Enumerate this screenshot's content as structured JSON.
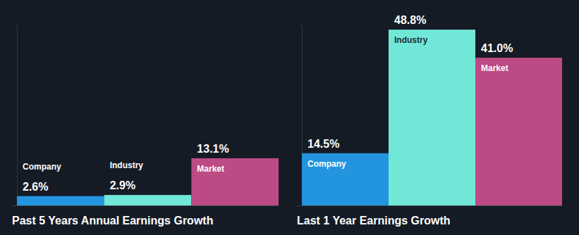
{
  "chart_data": [
    {
      "type": "bar",
      "title": "Past 5 Years Annual Earnings Growth",
      "categories": [
        "Company",
        "Industry",
        "Market"
      ],
      "values": [
        2.6,
        2.9,
        13.1
      ],
      "value_labels": [
        "2.6%",
        "2.9%",
        "13.1%"
      ],
      "colors": [
        "#2394df",
        "#71e8d7",
        "#bc4a85"
      ],
      "ylim": [
        0,
        50
      ],
      "yticks": [
        0,
        50
      ],
      "data_labels": true,
      "tick_labels": false,
      "grid": false
    },
    {
      "type": "bar",
      "title": "Last 1 Year Earnings Growth",
      "categories": [
        "Company",
        "Industry",
        "Market"
      ],
      "values": [
        14.5,
        48.8,
        41.0
      ],
      "value_labels": [
        "14.5%",
        "48.8%",
        "41.0%"
      ],
      "colors": [
        "#2394df",
        "#71e8d7",
        "#bc4a85"
      ],
      "ylim": [
        0,
        50
      ],
      "yticks": [
        0,
        50
      ],
      "data_labels": true,
      "tick_labels": false,
      "grid": false
    }
  ]
}
